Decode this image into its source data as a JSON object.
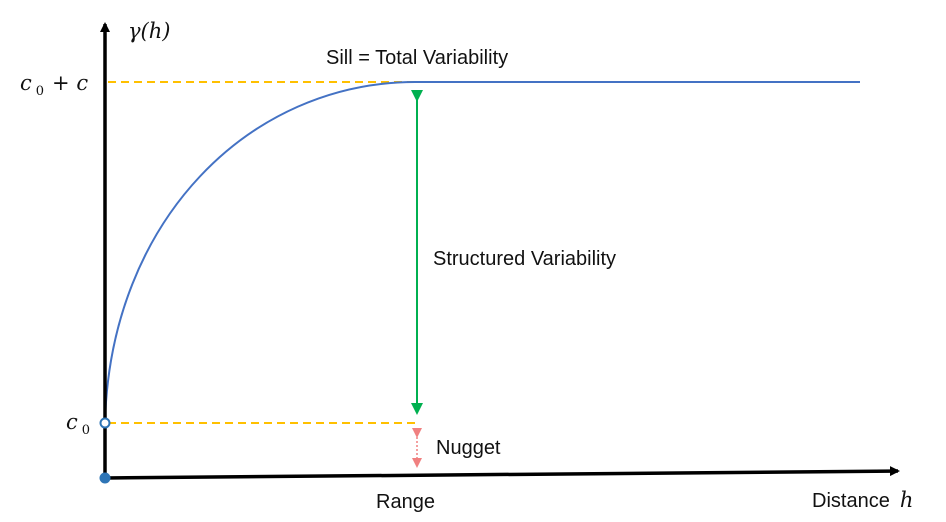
{
  "labels": {
    "y_axis": "γ(h)",
    "x_axis_text": "Distance",
    "x_axis_var": "h",
    "sill_tick_c": "c",
    "sill_tick_sub": "0",
    "sill_tick_rest": "+ c",
    "nugget_tick_c": "c",
    "nugget_tick_sub": "0",
    "sill": "Sill = Total Variability",
    "structured": "Structured Variability",
    "nugget": "Nugget",
    "range": "Range"
  },
  "colors": {
    "axis": "#000000",
    "curve": "#4472C4",
    "guide": "#FFC000",
    "structured_arrow": "#00B050",
    "nugget_arrow": "#F08080",
    "origin_dot": "#2E75B6"
  }
}
